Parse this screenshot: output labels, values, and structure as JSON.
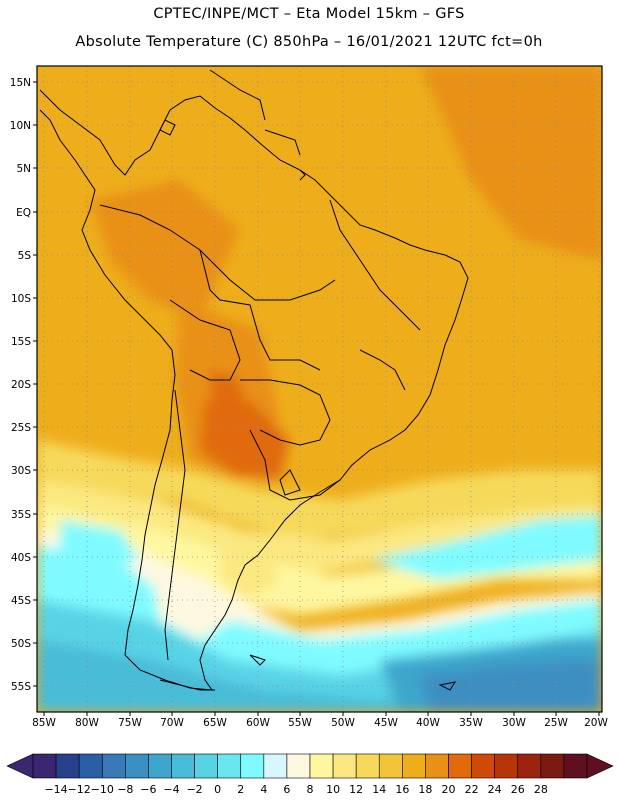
{
  "header": {
    "line1": "CPTEC/INPE/MCT –  Eta Model 15km – GFS",
    "line2": "Absolute Temperature (C) 850hPa – 16/01/2021 12UTC fct=0h"
  },
  "map": {
    "lat_labels": [
      "15N",
      "10N",
      "5N",
      "EQ",
      "5S",
      "10S",
      "15S",
      "20S",
      "25S",
      "30S",
      "35S",
      "40S",
      "45S",
      "50S",
      "55S"
    ],
    "lon_labels": [
      "85W",
      "80W",
      "75W",
      "70W",
      "65W",
      "60W",
      "55W",
      "50W",
      "45W",
      "40W",
      "35W",
      "30W",
      "25W",
      "20W"
    ],
    "background_color": "#e8a21c"
  },
  "colorbar": {
    "labels": [
      "-14",
      "-12",
      "-10",
      "-8",
      "-6",
      "-4",
      "-2",
      "0",
      "2",
      "4",
      "6",
      "8",
      "10",
      "12",
      "14",
      "16",
      "18",
      "20",
      "22",
      "24",
      "26",
      "28"
    ],
    "colors": [
      "#3b2670",
      "#26408c",
      "#2a5fa8",
      "#3a79b8",
      "#3c8fc2",
      "#3ea6cc",
      "#49bcd8",
      "#58d3e6",
      "#6be6ef",
      "#7ffbff",
      "#d6f7fb",
      "#fff8e0",
      "#fff7a0",
      "#fbe880",
      "#f6d95a",
      "#f2c43a",
      "#eeae1c",
      "#e99016",
      "#e06a0c",
      "#cf4a08",
      "#b8350a",
      "#9a2410",
      "#7a1a12",
      "#5e1020"
    ],
    "left_arrow_color": "#3b2670",
    "right_arrow_color": "#5e1020"
  }
}
